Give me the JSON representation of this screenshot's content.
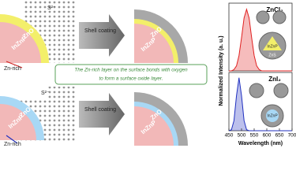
{
  "top_row": {
    "ion": "S²⁻",
    "shell_label": "ZnO",
    "core_label": "InZnP",
    "arrow_label": "Zn-rich",
    "process": "Shell coating",
    "result_shell": "ZnS",
    "result_middle": "ZnO",
    "result_core": "InZnP"
  },
  "banner": {
    "lines": [
      "The Zn-rich layer on the surface bonds with oxygen",
      "to form a surface oxide layer."
    ]
  },
  "bottom_row": {
    "ion": "S²⁻",
    "shell_label": "ZnO",
    "core_label": "InZnP",
    "arrow_label": "Zn-rich",
    "process": "Shell coating",
    "result_shell": "ZnS",
    "result_middle": "ZnO",
    "result_core": "InZnP"
  },
  "plot_insets": {
    "top": [
      "ZnS",
      "InZnP"
    ],
    "bottom": [
      "InZnP"
    ]
  },
  "chart_data": [
    {
      "type": "line",
      "label": "ZnCl₂",
      "ylabel": "Normalized Intensity (a. u.)",
      "x": [
        450,
        460,
        470,
        480,
        490,
        500,
        510,
        520,
        530,
        540,
        550,
        560,
        570,
        580,
        590,
        600,
        650,
        700
      ],
      "series": [
        {
          "color": "#e02020",
          "values": [
            0,
            0,
            0.02,
            0.08,
            0.25,
            0.54,
            0.86,
            1,
            0.86,
            0.54,
            0.25,
            0.08,
            0.02,
            0,
            0,
            0,
            0,
            0
          ]
        }
      ],
      "xlim": [
        450,
        700
      ],
      "ylim": [
        0,
        1.1
      ]
    },
    {
      "type": "line",
      "label": "ZnI₂",
      "xlabel": "Wavelength (nm)",
      "x": [
        450,
        460,
        470,
        480,
        490,
        500,
        510,
        520,
        530,
        540,
        550,
        560,
        570,
        580,
        590,
        600,
        650,
        700
      ],
      "series": [
        {
          "color": "#2030c0",
          "values": [
            0,
            0.02,
            0.19,
            0.66,
            1,
            0.66,
            0.19,
            0.02,
            0,
            0,
            0,
            0,
            0,
            0,
            0,
            0,
            0,
            0
          ]
        }
      ],
      "xlim": [
        450,
        700
      ],
      "ylim": [
        0,
        1.1
      ],
      "xticks": [
        450,
        500,
        550,
        600,
        650,
        700
      ]
    }
  ]
}
